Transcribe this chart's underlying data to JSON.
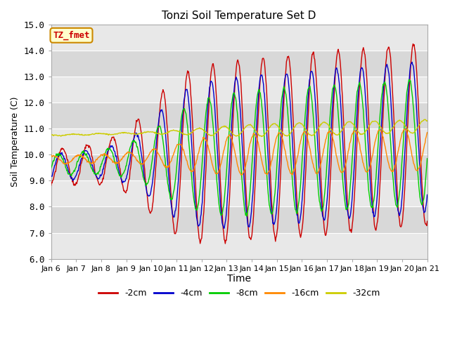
{
  "title": "Tonzi Soil Temperature Set D",
  "xlabel": "Time",
  "ylabel": "Soil Temperature (C)",
  "ylim": [
    6.0,
    15.0
  ],
  "yticks": [
    6.0,
    7.0,
    8.0,
    9.0,
    10.0,
    11.0,
    12.0,
    13.0,
    14.0,
    15.0
  ],
  "xtick_labels": [
    "Jan 6",
    "Jan 7",
    "Jan 8",
    "Jan 9",
    "Jan 10",
    "Jan 11",
    "Jan 12",
    "Jan 13",
    "Jan 14",
    "Jan 15",
    "Jan 16",
    "Jan 17",
    "Jan 18",
    "Jan 19",
    "Jan 20",
    "Jan 21"
  ],
  "colors": {
    "-2cm": "#cc0000",
    "-4cm": "#0000cc",
    "-8cm": "#00cc00",
    "-16cm": "#ff8800",
    "-32cm": "#cccc00"
  },
  "legend_label_box_bg": "#ffffcc",
  "legend_label_box_edge": "#cc8800",
  "legend_label_text": "#cc0000",
  "legend_label": "TZ_fmet",
  "plot_bg_color": "#e8e8e8",
  "grid_color": "#ffffff",
  "band_color_dark": "#d8d8d8",
  "band_color_light": "#e8e8e8"
}
